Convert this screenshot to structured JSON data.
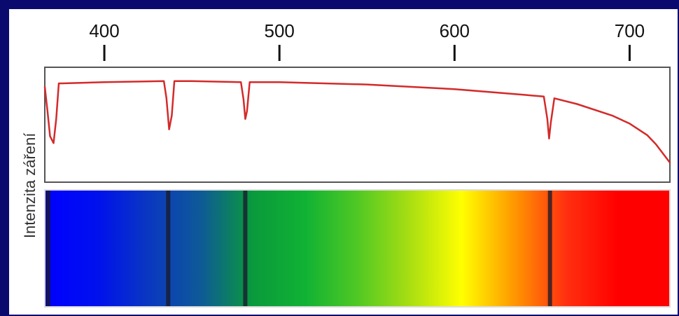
{
  "chart_data": {
    "type": "line",
    "xlabel": "",
    "ylabel": "Intenzita záření",
    "x_ticks": [
      400,
      500,
      600,
      700
    ],
    "xlim": [
      366,
      723
    ],
    "ylim": [
      0,
      1
    ],
    "grid": false,
    "series": [
      {
        "color": "#d42a2a",
        "x": [
          366,
          367.5,
          369,
          371,
          372.5,
          374,
          376,
          400,
          434,
          435.5,
          437,
          438.5,
          440,
          450,
          478,
          479.5,
          480.5,
          481.5,
          483,
          500,
          550,
          600,
          640,
          651,
          653,
          654,
          655,
          657,
          670,
          690,
          700,
          710,
          715,
          720,
          723
        ],
        "y": [
          0.83,
          0.62,
          0.4,
          0.34,
          0.55,
          0.86,
          0.86,
          0.87,
          0.88,
          0.73,
          0.46,
          0.58,
          0.88,
          0.88,
          0.87,
          0.72,
          0.55,
          0.62,
          0.87,
          0.87,
          0.85,
          0.81,
          0.76,
          0.745,
          0.55,
          0.38,
          0.52,
          0.73,
          0.68,
          0.58,
          0.51,
          0.41,
          0.33,
          0.23,
          0.17
        ]
      }
    ],
    "spectrum_colors": [
      "#0000ff",
      "#0010ee",
      "#0a38c0",
      "#0e5a96",
      "#0a9a3c",
      "#10b234",
      "#50c824",
      "#a8de12",
      "#ffff00",
      "#ff9900",
      "#ff3010",
      "#ff0000",
      "#ff0000"
    ],
    "absorption_lines": [
      368,
      436.5,
      480.5,
      654.5
    ]
  }
}
